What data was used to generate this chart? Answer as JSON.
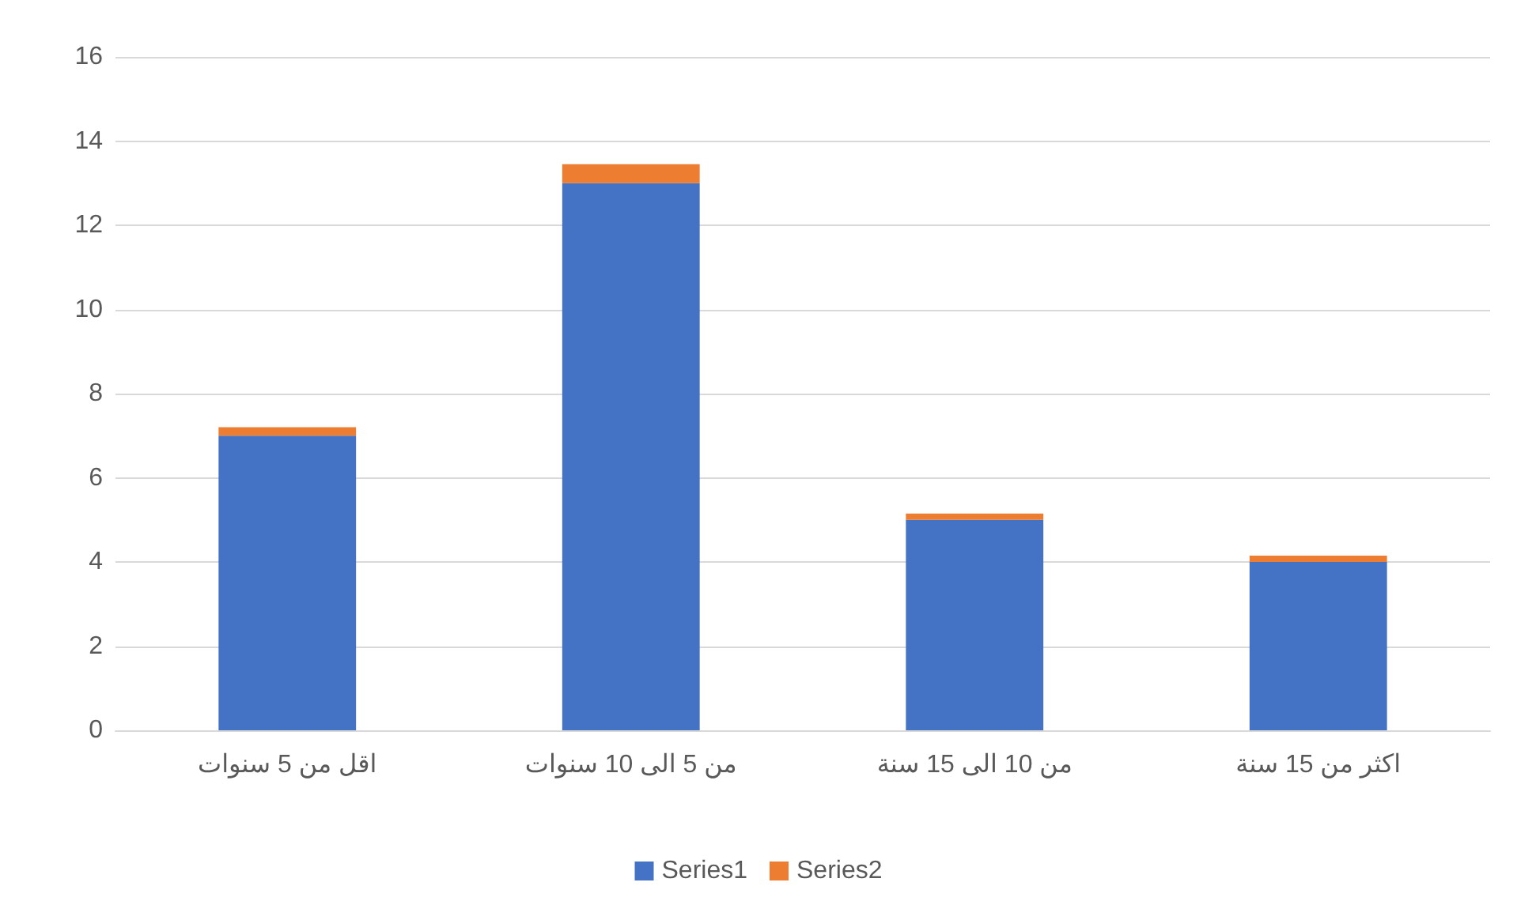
{
  "chart_data": {
    "type": "bar",
    "stacked": true,
    "categories": [
      "اقل من 5 سنوات",
      "من 5 الى 10 سنوات",
      "من 10 الى 15 سنة",
      "اكثر من 15 سنة"
    ],
    "series": [
      {
        "name": "Series1",
        "color": "#4472c4",
        "values": [
          7,
          13,
          5,
          4
        ]
      },
      {
        "name": "Series2",
        "color": "#ed7d31",
        "values": [
          0.2,
          0.45,
          0.15,
          0.15
        ]
      }
    ],
    "ylim": [
      0,
      16
    ],
    "yticks": [
      0,
      2,
      4,
      6,
      8,
      10,
      12,
      14,
      16
    ],
    "grid": "y",
    "legend": "bottom"
  }
}
